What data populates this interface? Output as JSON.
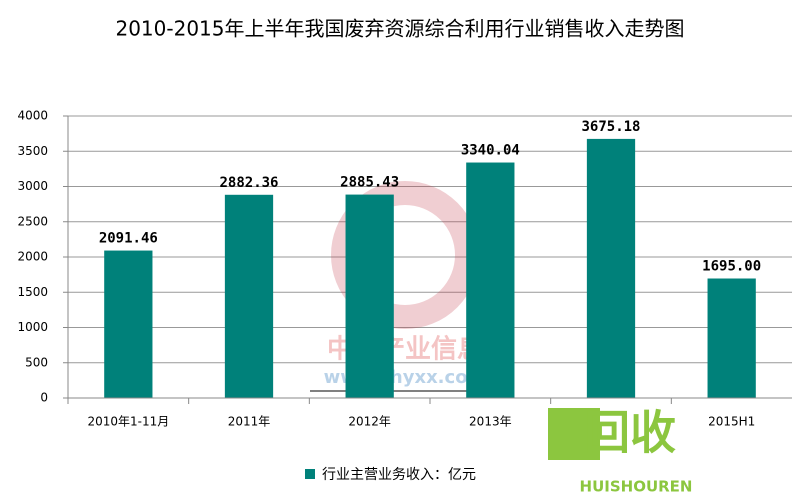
{
  "chart_data": {
    "type": "bar",
    "title": "2010-2015年上半年我国废弃资源综合利用行业销售收入走势图",
    "categories": [
      "2010年1-11月",
      "2011年",
      "2012年",
      "2013年",
      null,
      "2015H1"
    ],
    "values": [
      2091.46,
      2882.36,
      2885.43,
      3340.04,
      3675.18,
      1695.0
    ],
    "value_labels": [
      "2091.46",
      "2882.36",
      "2885.43",
      "3340.04",
      "3675.18",
      "1695.00"
    ],
    "series_name": "行业主营业务收入：亿元",
    "color": "#00817a",
    "ylim": [
      0,
      4000
    ],
    "yticks": [
      0,
      500,
      1000,
      1500,
      2000,
      2500,
      3000,
      3500,
      4000
    ],
    "grid": true,
    "watermarks": [
      "中国产业信息",
      "www.chyxx.com",
      "回收",
      "HUISHOUREN"
    ]
  }
}
